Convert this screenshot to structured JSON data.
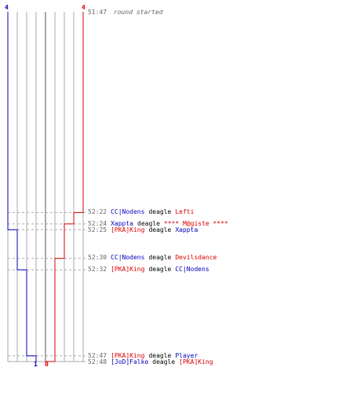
{
  "colors": {
    "team_blue": "#0000bb",
    "team_red": "#dd0000",
    "grid": "#aaaaaa",
    "center": "#555555",
    "dash": "#aaaaaa",
    "time": "#666666",
    "text": "#000000"
  },
  "counts": {
    "blue_start": "4",
    "red_start": "4",
    "blue_end": "1",
    "red_end": "0"
  },
  "round_start": {
    "time": "51:47",
    "text": "round started"
  },
  "events": [
    {
      "time": "52:22",
      "seconds": 35,
      "killer": "CC|Nodens",
      "killer_team": "blue",
      "weapon": "deagle",
      "victim": "Lefti",
      "victim_team": "red"
    },
    {
      "time": "52:24",
      "seconds": 37,
      "killer": "Xappta",
      "killer_team": "blue",
      "weapon": "deagle",
      "victim": "**** M@giste ****",
      "victim_team": "red"
    },
    {
      "time": "52:25",
      "seconds": 38,
      "killer": "[PKA]King",
      "killer_team": "red",
      "weapon": "deagle",
      "victim": "Xappta",
      "victim_team": "blue"
    },
    {
      "time": "52:30",
      "seconds": 43,
      "killer": "CC|Nodens",
      "killer_team": "blue",
      "weapon": "deagle",
      "victim": "Devilsdance",
      "victim_team": "red"
    },
    {
      "time": "52:32",
      "seconds": 45,
      "killer": "[PKA]King",
      "killer_team": "red",
      "weapon": "deagle",
      "victim": "CC|Nodens",
      "victim_team": "blue"
    },
    {
      "time": "52:47",
      "seconds": 60,
      "killer": "[PKA]King",
      "killer_team": "red",
      "weapon": "deagle",
      "victim": "Player",
      "victim_team": "blue"
    },
    {
      "time": "52:48",
      "seconds": 61,
      "killer": "[JoD]Falke",
      "killer_team": "blue",
      "weapon": "deagle",
      "victim": "[PKA]King",
      "victim_team": "red"
    }
  ]
}
